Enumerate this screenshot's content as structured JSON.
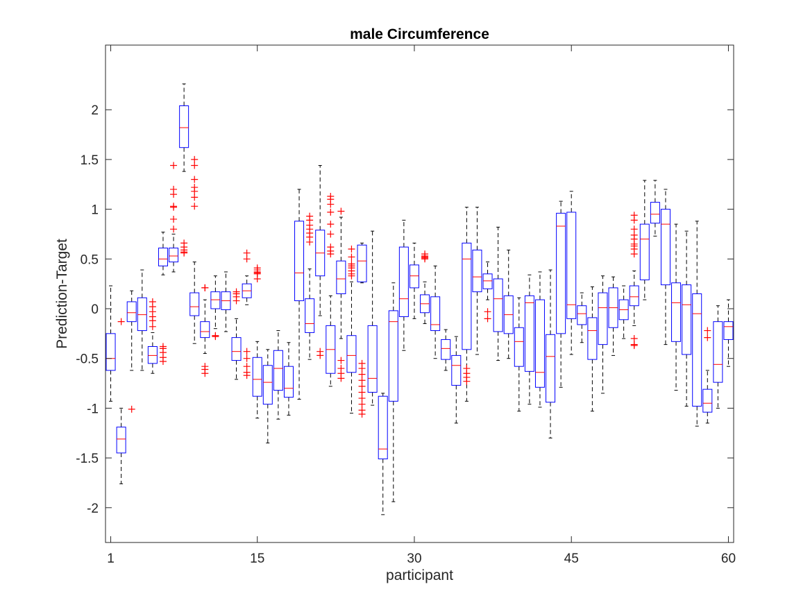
{
  "chart_data": {
    "type": "boxplot",
    "title": "male Circumference",
    "xlabel": "participant",
    "ylabel": "Prediction-Target",
    "xlim": [
      0.5,
      60.5
    ],
    "ylim": [
      -2.35,
      2.65
    ],
    "xticks": [
      1,
      15,
      30,
      45,
      60
    ],
    "xtick_labels": [
      "1",
      "15",
      "30",
      "45",
      "60"
    ],
    "yticks": [
      -2,
      -1.5,
      -1,
      -0.5,
      0,
      0.5,
      1,
      1.5,
      2
    ],
    "ytick_labels": [
      "-2",
      "-1.5",
      "-1",
      "-0.5",
      "0",
      "0.5",
      "1",
      "1.5",
      "2"
    ],
    "grid": false,
    "colors": {
      "box": "#0000ff",
      "median": "#ff0000",
      "whisker": "#000000",
      "outlier": "#ff0000",
      "axes": "#262626"
    },
    "boxes": [
      {
        "x": 1,
        "low": -0.93,
        "q1": -0.62,
        "median": -0.5,
        "q3": -0.25,
        "high": 0.23,
        "outliers": []
      },
      {
        "x": 2,
        "low": -1.76,
        "q1": -1.45,
        "median": -1.31,
        "q3": -1.19,
        "high": -1.0,
        "outliers": [
          -0.13
        ]
      },
      {
        "x": 3,
        "low": -0.62,
        "q1": -0.13,
        "median": -0.04,
        "q3": 0.07,
        "high": 0.18,
        "outliers": [
          -1.01
        ]
      },
      {
        "x": 4,
        "low": -0.62,
        "q1": -0.22,
        "median": -0.06,
        "q3": 0.11,
        "high": 0.39,
        "outliers": []
      },
      {
        "x": 5,
        "low": -0.65,
        "q1": -0.55,
        "median": -0.47,
        "q3": -0.38,
        "high": -0.24,
        "outliers": [
          0.07,
          0.02,
          -0.03,
          -0.08,
          -0.12,
          -0.18
        ]
      },
      {
        "x": 6,
        "low": 0.34,
        "q1": 0.43,
        "median": 0.5,
        "q3": 0.61,
        "high": 0.77,
        "outliers": [
          -0.38,
          -0.4,
          -0.44,
          -0.49,
          -0.53
        ]
      },
      {
        "x": 7,
        "low": 0.37,
        "q1": 0.47,
        "median": 0.53,
        "q3": 0.61,
        "high": 0.75,
        "outliers": [
          1.44,
          1.2,
          1.15,
          1.03,
          1.02,
          0.9,
          0.8
        ]
      },
      {
        "x": 8,
        "low": 1.38,
        "q1": 1.62,
        "median": 1.82,
        "q3": 2.04,
        "high": 2.26,
        "outliers": [
          0.66,
          0.62,
          0.59,
          0.57,
          0.56
        ]
      },
      {
        "x": 9,
        "low": -0.35,
        "q1": -0.07,
        "median": 0.02,
        "q3": 0.16,
        "high": 0.47,
        "outliers": [
          1.5,
          1.44,
          1.3,
          1.22,
          1.18,
          1.12,
          1.03
        ]
      },
      {
        "x": 10,
        "low": -0.45,
        "q1": -0.29,
        "median": -0.23,
        "q3": -0.13,
        "high": 0.09,
        "outliers": [
          0.21,
          0.21,
          -0.58,
          -0.61,
          -0.65
        ]
      },
      {
        "x": 11,
        "low": -0.2,
        "q1": 0.0,
        "median": 0.09,
        "q3": 0.17,
        "high": 0.33,
        "outliers": [
          -0.27,
          -0.28
        ]
      },
      {
        "x": 12,
        "low": -0.23,
        "q1": -0.01,
        "median": 0.08,
        "q3": 0.17,
        "high": 0.37,
        "outliers": []
      },
      {
        "x": 13,
        "low": -0.71,
        "q1": -0.52,
        "median": -0.43,
        "q3": -0.29,
        "high": -0.1,
        "outliers": [
          0.17,
          0.15,
          0.12,
          0.08
        ]
      },
      {
        "x": 14,
        "low": 0.04,
        "q1": 0.11,
        "median": 0.18,
        "q3": 0.25,
        "high": 0.33,
        "outliers": [
          0.56,
          0.5,
          -0.43,
          -0.5,
          -0.58,
          -0.64,
          -0.67
        ]
      },
      {
        "x": 15,
        "low": -1.1,
        "q1": -0.88,
        "median": -0.71,
        "q3": -0.49,
        "high": -0.33,
        "outliers": [
          0.41,
          0.39,
          0.37,
          0.36,
          0.35,
          0.3
        ]
      },
      {
        "x": 16,
        "low": -1.35,
        "q1": -0.96,
        "median": -0.74,
        "q3": -0.57,
        "high": -0.41,
        "outliers": []
      },
      {
        "x": 17,
        "low": -1.11,
        "q1": -0.82,
        "median": -0.6,
        "q3": -0.42,
        "high": -0.22,
        "outliers": []
      },
      {
        "x": 18,
        "low": -1.07,
        "q1": -0.89,
        "median": -0.8,
        "q3": -0.58,
        "high": -0.34,
        "outliers": []
      },
      {
        "x": 19,
        "low": -0.91,
        "q1": 0.08,
        "median": 0.36,
        "q3": 0.88,
        "high": 1.2,
        "outliers": []
      },
      {
        "x": 20,
        "low": -0.51,
        "q1": -0.24,
        "median": -0.15,
        "q3": 0.1,
        "high": 0.4,
        "outliers": [
          0.93,
          0.89,
          0.84,
          0.8,
          0.76,
          0.72,
          0.67
        ]
      },
      {
        "x": 21,
        "low": -0.07,
        "q1": 0.33,
        "median": 0.56,
        "q3": 0.79,
        "high": 1.44,
        "outliers": [
          -0.43,
          -0.47
        ]
      },
      {
        "x": 22,
        "low": -0.78,
        "q1": -0.65,
        "median": -0.41,
        "q3": -0.17,
        "high": 0.13,
        "outliers": [
          1.13,
          1.1,
          1.05,
          0.97,
          0.85,
          0.75,
          0.62,
          0.58,
          0.55
        ]
      },
      {
        "x": 23,
        "low": -0.3,
        "q1": 0.15,
        "median": 0.3,
        "q3": 0.48,
        "high": 0.92,
        "outliers": [
          0.98,
          -0.52,
          -0.6,
          -0.65,
          -0.7
        ]
      },
      {
        "x": 24,
        "low": -1.05,
        "q1": -0.64,
        "median": -0.47,
        "q3": -0.27,
        "high": 0.27,
        "outliers": [
          0.6,
          0.52,
          0.45,
          0.43,
          0.41,
          0.38,
          0.35,
          0.33
        ]
      },
      {
        "x": 25,
        "low": 0.26,
        "q1": 0.27,
        "median": 0.48,
        "q3": 0.64,
        "high": 0.66,
        "outliers": [
          -0.55,
          -0.6,
          -0.66,
          -0.72,
          -0.78,
          -0.84,
          -0.9,
          -0.96,
          -1.02,
          -1.06
        ]
      },
      {
        "x": 26,
        "low": -0.97,
        "q1": -0.84,
        "median": -0.7,
        "q3": -0.17,
        "high": 0.78,
        "outliers": []
      },
      {
        "x": 27,
        "low": -2.07,
        "q1": -1.51,
        "median": -1.41,
        "q3": -0.88,
        "high": -0.85,
        "outliers": []
      },
      {
        "x": 28,
        "low": -1.94,
        "q1": -0.93,
        "median": -0.13,
        "q3": -0.02,
        "high": 0.26,
        "outliers": []
      },
      {
        "x": 29,
        "low": -0.42,
        "q1": -0.08,
        "median": 0.1,
        "q3": 0.62,
        "high": 0.89,
        "outliers": []
      },
      {
        "x": 30,
        "low": -0.1,
        "q1": 0.21,
        "median": 0.33,
        "q3": 0.44,
        "high": 0.66,
        "outliers": []
      },
      {
        "x": 31,
        "low": -0.15,
        "q1": -0.04,
        "median": 0.05,
        "q3": 0.14,
        "high": 0.27,
        "outliers": [
          0.55,
          0.53,
          0.52,
          0.51,
          0.5
        ]
      },
      {
        "x": 32,
        "low": -0.5,
        "q1": -0.22,
        "median": -0.16,
        "q3": 0.12,
        "high": 0.43,
        "outliers": []
      },
      {
        "x": 33,
        "low": -0.62,
        "q1": -0.51,
        "median": -0.4,
        "q3": -0.31,
        "high": -0.21,
        "outliers": []
      },
      {
        "x": 34,
        "low": -1.15,
        "q1": -0.77,
        "median": -0.57,
        "q3": -0.47,
        "high": -0.28,
        "outliers": []
      },
      {
        "x": 35,
        "low": -0.93,
        "q1": -0.41,
        "median": 0.5,
        "q3": 0.66,
        "high": 1.02,
        "outliers": [
          -0.6,
          -0.65,
          -0.69,
          -0.73
        ]
      },
      {
        "x": 36,
        "low": -0.46,
        "q1": 0.17,
        "median": 0.32,
        "q3": 0.59,
        "high": 1.02,
        "outliers": []
      },
      {
        "x": 37,
        "low": 0.09,
        "q1": 0.2,
        "median": 0.28,
        "q3": 0.35,
        "high": 0.47,
        "outliers": [
          -0.03,
          -0.1
        ]
      },
      {
        "x": 38,
        "low": -0.52,
        "q1": -0.23,
        "median": 0.1,
        "q3": 0.3,
        "high": 0.82,
        "outliers": []
      },
      {
        "x": 39,
        "low": -0.5,
        "q1": -0.25,
        "median": -0.06,
        "q3": 0.13,
        "high": 0.59,
        "outliers": []
      },
      {
        "x": 40,
        "low": -1.03,
        "q1": -0.58,
        "median": -0.33,
        "q3": -0.19,
        "high": 0.11,
        "outliers": []
      },
      {
        "x": 41,
        "low": -0.96,
        "q1": -0.63,
        "median": 0.06,
        "q3": 0.13,
        "high": 0.34,
        "outliers": []
      },
      {
        "x": 42,
        "low": -0.99,
        "q1": -0.79,
        "median": -0.64,
        "q3": 0.09,
        "high": 0.37,
        "outliers": []
      },
      {
        "x": 43,
        "low": -1.3,
        "q1": -0.94,
        "median": -0.48,
        "q3": -0.26,
        "high": 0.39,
        "outliers": []
      },
      {
        "x": 44,
        "low": -0.79,
        "q1": -0.25,
        "median": 0.83,
        "q3": 0.96,
        "high": 1.08,
        "outliers": []
      },
      {
        "x": 45,
        "low": -0.46,
        "q1": -0.1,
        "median": 0.04,
        "q3": 0.97,
        "high": 1.18,
        "outliers": []
      },
      {
        "x": 46,
        "low": -0.34,
        "q1": -0.16,
        "median": -0.05,
        "q3": 0.03,
        "high": 0.16,
        "outliers": []
      },
      {
        "x": 47,
        "low": -1.03,
        "q1": -0.51,
        "median": -0.22,
        "q3": -0.09,
        "high": 0.22,
        "outliers": []
      },
      {
        "x": 48,
        "low": -0.85,
        "q1": -0.36,
        "median": 0.01,
        "q3": 0.16,
        "high": 0.33,
        "outliers": []
      },
      {
        "x": 49,
        "low": -0.47,
        "q1": -0.19,
        "median": 0.01,
        "q3": 0.21,
        "high": 0.32,
        "outliers": []
      },
      {
        "x": 50,
        "low": -0.3,
        "q1": -0.11,
        "median": -0.01,
        "q3": 0.09,
        "high": 0.23,
        "outliers": []
      },
      {
        "x": 51,
        "low": -0.17,
        "q1": 0.03,
        "median": 0.12,
        "q3": 0.23,
        "high": 0.38,
        "outliers": [
          0.94,
          0.89,
          0.8,
          0.74,
          0.7,
          0.65,
          0.63,
          0.6,
          0.55,
          -0.3,
          -0.36,
          -0.37
        ]
      },
      {
        "x": 52,
        "low": 0.09,
        "q1": 0.29,
        "median": 0.7,
        "q3": 0.85,
        "high": 1.29,
        "outliers": []
      },
      {
        "x": 53,
        "low": 0.73,
        "q1": 0.86,
        "median": 0.95,
        "q3": 1.07,
        "high": 1.29,
        "outliers": []
      },
      {
        "x": 54,
        "low": -0.36,
        "q1": 0.24,
        "median": 0.85,
        "q3": 1.0,
        "high": 1.2,
        "outliers": []
      },
      {
        "x": 55,
        "low": -0.82,
        "q1": -0.33,
        "median": 0.06,
        "q3": 0.26,
        "high": 0.85,
        "outliers": []
      },
      {
        "x": 56,
        "low": -0.98,
        "q1": -0.46,
        "median": 0.04,
        "q3": 0.24,
        "high": 0.78,
        "outliers": []
      },
      {
        "x": 57,
        "low": -1.18,
        "q1": -0.98,
        "median": -0.05,
        "q3": 0.15,
        "high": 0.88,
        "outliers": []
      },
      {
        "x": 58,
        "low": -1.15,
        "q1": -1.04,
        "median": -0.95,
        "q3": -0.81,
        "high": -0.62,
        "outliers": [
          -0.22,
          -0.29
        ]
      },
      {
        "x": 59,
        "low": -1.0,
        "q1": -0.74,
        "median": -0.56,
        "q3": -0.13,
        "high": 0.03,
        "outliers": []
      },
      {
        "x": 60,
        "low": -0.58,
        "q1": -0.31,
        "median": -0.18,
        "q3": -0.13,
        "high": 0.09,
        "outliers": []
      }
    ]
  }
}
